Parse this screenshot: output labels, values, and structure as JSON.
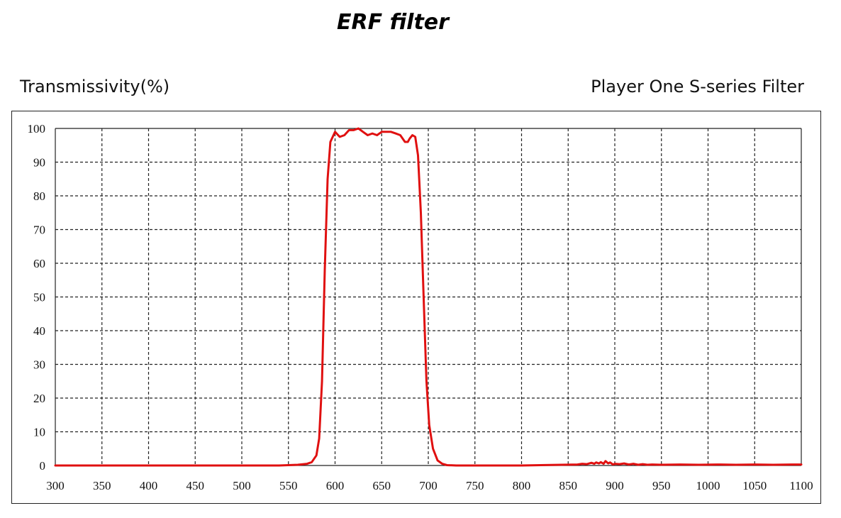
{
  "chart_data": {
    "type": "line",
    "title": "ERF filter",
    "ylabel": "Transmissivity(%)",
    "xlabel": "",
    "xlim": [
      300,
      1100
    ],
    "ylim": [
      0,
      100
    ],
    "x_ticks": [
      "300",
      "350",
      "400",
      "450",
      "500",
      "550",
      "600",
      "650",
      "700",
      "750",
      "800",
      "850",
      "900",
      "950",
      "1000",
      "1050",
      "1100"
    ],
    "y_ticks": [
      "0",
      "10",
      "20",
      "30",
      "40",
      "50",
      "60",
      "70",
      "80",
      "90",
      "100"
    ],
    "grid": true,
    "grid_style": "dashed",
    "series": [
      {
        "name": "Player One S-series Filter",
        "color": "#e01010",
        "x": [
          300,
          540,
          560,
          570,
          575,
          580,
          583,
          586,
          589,
          592,
          595,
          600,
          605,
          610,
          615,
          620,
          625,
          630,
          635,
          640,
          645,
          650,
          655,
          660,
          665,
          670,
          675,
          678,
          680,
          683,
          686,
          689,
          692,
          695,
          698,
          701,
          705,
          710,
          715,
          720,
          730,
          800,
          860,
          865,
          870,
          875,
          878,
          880,
          883,
          885,
          888,
          890,
          893,
          895,
          898,
          900,
          905,
          910,
          915,
          920,
          925,
          930,
          935,
          940,
          950,
          970,
          990,
          1010,
          1030,
          1050,
          1070,
          1090,
          1100
        ],
        "y": [
          0,
          0,
          0.2,
          0.5,
          1,
          3,
          8,
          25,
          58,
          85,
          96,
          99,
          97.5,
          98,
          99.5,
          99.5,
          100,
          99,
          98,
          98.5,
          98,
          99,
          99,
          99,
          98.5,
          98,
          96,
          96,
          97,
          98,
          97.5,
          92,
          75,
          50,
          25,
          12,
          5,
          1.5,
          0.5,
          0.1,
          0,
          0,
          0.3,
          0.5,
          0.4,
          0.8,
          0.5,
          0.9,
          0.6,
          1,
          0.5,
          1.3,
          0.6,
          0.9,
          0.3,
          0.5,
          0.4,
          0.6,
          0.3,
          0.5,
          0.2,
          0.4,
          0.2,
          0.3,
          0.2,
          0.3,
          0.2,
          0.3,
          0.2,
          0.3,
          0.2,
          0.3,
          0.3
        ]
      }
    ]
  }
}
